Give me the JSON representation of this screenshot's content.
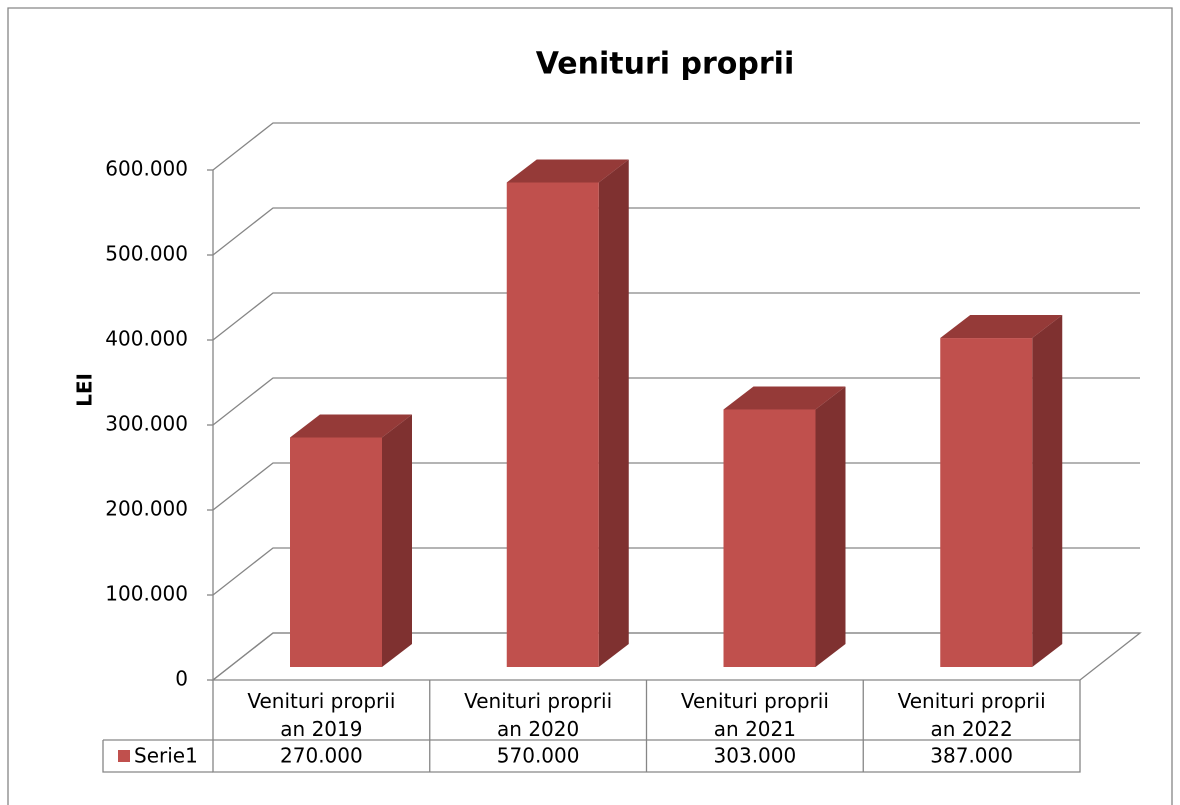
{
  "chart_data": {
    "type": "bar3d",
    "title": "Venituri proprii",
    "y_label": "LEI",
    "categories": [
      "Venituri proprii an 2019",
      "Venituri proprii an 2020",
      "Venituri proprii an 2021",
      "Venituri proprii an 2022"
    ],
    "series": [
      {
        "name": "Serie1",
        "color": "#c0504d",
        "values": [
          270000,
          570000,
          303000,
          387000
        ],
        "value_labels": [
          "270.000",
          "570.000",
          "303.000",
          "387.000"
        ]
      }
    ],
    "ylim": [
      0,
      600000
    ],
    "yticks": [
      0,
      {
        "value": 100000,
        "label": "100.000"
      },
      {
        "value": 200000,
        "label": "200.000"
      },
      {
        "value": 300000,
        "label": "300.000"
      },
      {
        "value": 400000,
        "label": "400.000"
      },
      {
        "value": 500000,
        "label": "500.000"
      },
      {
        "value": 600000,
        "label": "600.000"
      }
    ],
    "grid": true,
    "data_table": true
  }
}
